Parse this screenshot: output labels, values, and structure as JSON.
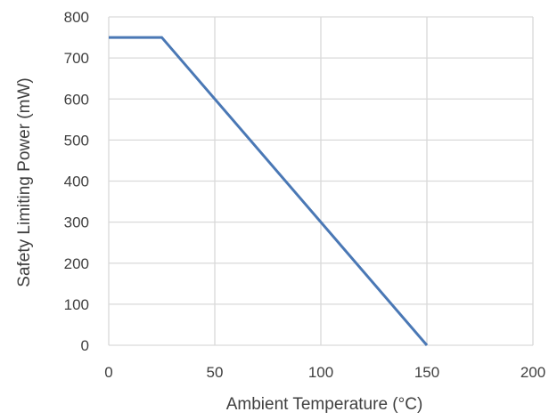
{
  "chart_data": {
    "type": "line",
    "title": "",
    "xlabel": "Ambient Temperature (°C)",
    "ylabel": "Safety Limiting Power (mW)",
    "xlim": [
      0,
      200
    ],
    "ylim": [
      0,
      800
    ],
    "x_ticks": [
      0,
      50,
      100,
      150,
      200
    ],
    "y_ticks": [
      0,
      100,
      200,
      300,
      400,
      500,
      600,
      700,
      800
    ],
    "x_tick_labels": [
      "0",
      "50",
      "100",
      "150",
      "200"
    ],
    "y_tick_labels": [
      "0",
      "100",
      "200",
      "300",
      "400",
      "500",
      "600",
      "700",
      "800"
    ],
    "grid": true,
    "legend": "none",
    "series": [
      {
        "color": "#4a78b5",
        "points": [
          {
            "x": 0,
            "y": 750
          },
          {
            "x": 25,
            "y": 750
          },
          {
            "x": 150,
            "y": 0
          }
        ]
      }
    ],
    "colors": {
      "grid": "#d9d9d9",
      "axis_text": "#404040"
    }
  }
}
